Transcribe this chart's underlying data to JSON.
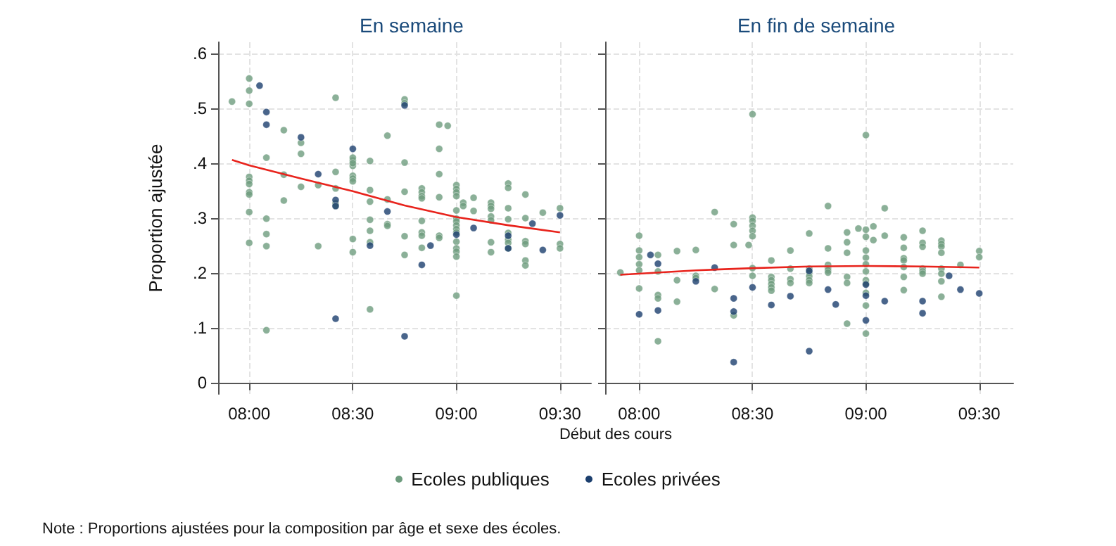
{
  "chart_data": [
    {
      "type": "scatter",
      "title": "En semaine",
      "ylabel": "Proportion ajustée",
      "xlabel": "Début des cours",
      "legend": "bottom",
      "grid": true,
      "marker": "circle",
      "annotations": [
        "Note : Proportions ajustées pour la composition par âge et sexe des écoles."
      ],
      "xlim": [
        7.85,
        9.65
      ],
      "ylim": [
        -0.02,
        0.62
      ],
      "xticks": [
        {
          "value": 8,
          "label": "08:00"
        },
        {
          "value": 8.5,
          "label": "08:30"
        },
        {
          "value": 9,
          "label": "09:00"
        },
        {
          "value": 9.5,
          "label": "09:30"
        }
      ],
      "yticks": [
        0,
        {
          "value": 0.1,
          "label": ".1"
        },
        {
          "value": 0.2,
          "label": ".2"
        },
        {
          "value": 0.3,
          "label": ".3"
        },
        {
          "value": 0.4,
          "label": ".4"
        },
        {
          "value": 0.5,
          "label": ".5"
        },
        {
          "value": 0.6,
          "label": ".6"
        }
      ],
      "series": [
        {
          "name": "Ecoles publiques",
          "color": "#6e9c7e",
          "x": [
            7.917,
            8,
            8,
            8,
            8,
            8,
            8,
            8,
            8,
            8,
            8,
            8.083,
            8.083,
            8.083,
            8.083,
            8.083,
            8.167,
            8.167,
            8.167,
            8.25,
            8.25,
            8.25,
            8.333,
            8.333,
            8.417,
            8.417,
            8.417,
            8.417,
            8.417,
            8.5,
            8.5,
            8.5,
            8.5,
            8.5,
            8.5,
            8.5,
            8.5,
            8.5,
            8.583,
            8.583,
            8.583,
            8.583,
            8.583,
            8.583,
            8.583,
            8.667,
            8.667,
            8.667,
            8.667,
            8.75,
            8.75,
            8.75,
            8.75,
            8.75,
            8.75,
            8.833,
            8.833,
            8.833,
            8.833,
            8.833,
            8.833,
            8.833,
            8.833,
            8.917,
            8.917,
            8.917,
            8.917,
            8.917,
            8.917,
            8.958,
            9,
            9,
            9,
            9,
            9,
            9,
            9,
            9,
            9,
            9,
            9,
            9,
            9,
            9,
            9,
            9.033,
            9.033,
            9.083,
            9.083,
            9.167,
            9.167,
            9.167,
            9.167,
            9.167,
            9.167,
            9.167,
            9.25,
            9.25,
            9.25,
            9.25,
            9.25,
            9.25,
            9.25,
            9.25,
            9.333,
            9.333,
            9.333,
            9.333,
            9.333,
            9.333,
            9.417,
            9.5,
            9.5,
            9.5
          ],
          "values": [
            0.512,
            0.554,
            0.532,
            0.508,
            0.375,
            0.368,
            0.362,
            0.347,
            0.343,
            0.311,
            0.255,
            0.41,
            0.299,
            0.271,
            0.249,
            0.096,
            0.46,
            0.379,
            0.332,
            0.437,
            0.417,
            0.357,
            0.36,
            0.249,
            0.519,
            0.384,
            0.354,
            0.327,
            0.322,
            0.395,
            0.405,
            0.41,
            0.4,
            0.377,
            0.372,
            0.367,
            0.262,
            0.238,
            0.404,
            0.351,
            0.33,
            0.297,
            0.277,
            0.256,
            0.134,
            0.45,
            0.334,
            0.289,
            0.286,
            0.516,
            0.509,
            0.401,
            0.348,
            0.267,
            0.233,
            0.354,
            0.347,
            0.34,
            0.336,
            0.295,
            0.274,
            0.268,
            0.246,
            0.47,
            0.426,
            0.38,
            0.338,
            0.268,
            0.264,
            0.468,
            0.36,
            0.353,
            0.347,
            0.34,
            0.314,
            0.299,
            0.294,
            0.287,
            0.28,
            0.274,
            0.257,
            0.245,
            0.239,
            0.23,
            0.159,
            0.328,
            0.322,
            0.337,
            0.313,
            0.328,
            0.322,
            0.317,
            0.303,
            0.296,
            0.256,
            0.238,
            0.363,
            0.355,
            0.318,
            0.298,
            0.273,
            0.261,
            0.255,
            0.245,
            0.343,
            0.3,
            0.258,
            0.253,
            0.223,
            0.214,
            0.31,
            0.318,
            0.253,
            0.245
          ]
        },
        {
          "name": "Ecoles privées",
          "color": "#1c3f6e",
          "x": [
            8.05,
            8.083,
            8.083,
            8.25,
            8.333,
            8.417,
            8.417,
            8.417,
            8.5,
            8.583,
            8.667,
            8.75,
            8.75,
            8.833,
            8.875,
            9,
            9.083,
            9.25,
            9.25,
            9.367,
            9.417,
            9.5
          ],
          "values": [
            0.541,
            0.493,
            0.47,
            0.447,
            0.38,
            0.333,
            0.322,
            0.117,
            0.426,
            0.25,
            0.312,
            0.505,
            0.085,
            0.215,
            0.25,
            0.27,
            0.282,
            0.268,
            0.245,
            0.29,
            0.242,
            0.305
          ]
        },
        {
          "type": "line",
          "color": "#e8231c",
          "marker": "none",
          "x": [
            7.917,
            8,
            8.25,
            8.5,
            8.75,
            9,
            9.25,
            9.5
          ],
          "values": [
            0.406,
            0.396,
            0.372,
            0.349,
            0.323,
            0.302,
            0.287,
            0.274
          ]
        }
      ]
    },
    {
      "type": "scatter",
      "title": "En fin de semaine",
      "grid": true,
      "marker": "circle",
      "tick_labels": "x",
      "xlim": [
        7.85,
        9.65
      ],
      "ylim": [
        -0.02,
        0.62
      ],
      "xticks": [
        {
          "value": 8,
          "label": "08:00"
        },
        {
          "value": 8.5,
          "label": "08:30"
        },
        {
          "value": 9,
          "label": "09:00"
        },
        {
          "value": 9.5,
          "label": "09:30"
        }
      ],
      "yticks": [
        {
          "value": 0,
          "label": null
        },
        {
          "value": 0.1,
          "label": null
        },
        {
          "value": 0.2,
          "label": null
        },
        {
          "value": 0.3,
          "label": null
        },
        {
          "value": 0.4,
          "label": null
        },
        {
          "value": 0.5,
          "label": null
        },
        {
          "value": 0.6,
          "label": null
        }
      ],
      "series": [
        {
          "color": "#6e9c7e",
          "x": [
            7.917,
            8,
            8,
            8,
            8,
            8,
            8,
            8.083,
            8.083,
            8.083,
            8.083,
            8.083,
            8.167,
            8.167,
            8.167,
            8.25,
            8.25,
            8.25,
            8.333,
            8.333,
            8.417,
            8.417,
            8.417,
            8.483,
            8.5,
            8.5,
            8.5,
            8.5,
            8.5,
            8.5,
            8.5,
            8.5,
            8.583,
            8.583,
            8.583,
            8.583,
            8.583,
            8.583,
            8.667,
            8.667,
            8.667,
            8.667,
            8.75,
            8.75,
            8.75,
            8.75,
            8.75,
            8.75,
            8.833,
            8.833,
            8.833,
            8.833,
            8.833,
            8.833,
            8.917,
            8.917,
            8.917,
            8.917,
            8.917,
            8.917,
            8.967,
            9,
            9,
            9,
            9,
            9,
            9,
            9,
            9,
            9,
            9,
            9,
            9,
            9.033,
            9.033,
            9.083,
            9.083,
            9.167,
            9.167,
            9.167,
            9.167,
            9.167,
            9.167,
            9.167,
            9.25,
            9.25,
            9.25,
            9.25,
            9.25,
            9.25,
            9.333,
            9.333,
            9.333,
            9.333,
            9.333,
            9.333,
            9.333,
            9.333,
            9.417,
            9.5,
            9.5
          ],
          "values": [
            0.201,
            0.268,
            0.241,
            0.229,
            0.216,
            0.205,
            0.172,
            0.233,
            0.203,
            0.16,
            0.154,
            0.076,
            0.24,
            0.187,
            0.148,
            0.242,
            0.195,
            0.191,
            0.311,
            0.171,
            0.289,
            0.251,
            0.123,
            0.251,
            0.489,
            0.301,
            0.295,
            0.286,
            0.277,
            0.267,
            0.209,
            0.195,
            0.223,
            0.193,
            0.187,
            0.18,
            0.174,
            0.168,
            0.241,
            0.208,
            0.189,
            0.182,
            0.272,
            0.208,
            0.201,
            0.194,
            0.187,
            0.182,
            0.322,
            0.245,
            0.215,
            0.209,
            0.205,
            0.201,
            0.274,
            0.256,
            0.237,
            0.193,
            0.182,
            0.108,
            0.281,
            0.451,
            0.279,
            0.266,
            0.241,
            0.228,
            0.216,
            0.203,
            0.187,
            0.181,
            0.164,
            0.141,
            0.09,
            0.285,
            0.26,
            0.318,
            0.268,
            0.265,
            0.246,
            0.227,
            0.223,
            0.211,
            0.193,
            0.169,
            0.277,
            0.255,
            0.248,
            0.208,
            0.203,
            0.199,
            0.259,
            0.253,
            0.248,
            0.237,
            0.208,
            0.199,
            0.185,
            0.157,
            0.215,
            0.24,
            0.229
          ]
        },
        {
          "color": "#1c3f6e",
          "x": [
            8,
            8.05,
            8.083,
            8.083,
            8.25,
            8.333,
            8.417,
            8.417,
            8.417,
            8.5,
            8.583,
            8.667,
            8.75,
            8.75,
            8.833,
            8.867,
            9,
            9,
            9,
            9.083,
            9.25,
            9.25,
            9.367,
            9.417,
            9.5
          ],
          "values": [
            0.125,
            0.233,
            0.217,
            0.132,
            0.185,
            0.21,
            0.154,
            0.13,
            0.038,
            0.174,
            0.142,
            0.158,
            0.204,
            0.058,
            0.17,
            0.143,
            0.179,
            0.159,
            0.114,
            0.149,
            0.149,
            0.127,
            0.195,
            0.17,
            0.163
          ]
        },
        {
          "type": "line",
          "color": "#e8231c",
          "marker": "none",
          "x": [
            7.917,
            8.25,
            8.5,
            8.75,
            9,
            9.25,
            9.5
          ],
          "values": [
            0.197,
            0.205,
            0.209,
            0.212,
            0.213,
            0.212,
            0.21
          ]
        }
      ]
    }
  ]
}
